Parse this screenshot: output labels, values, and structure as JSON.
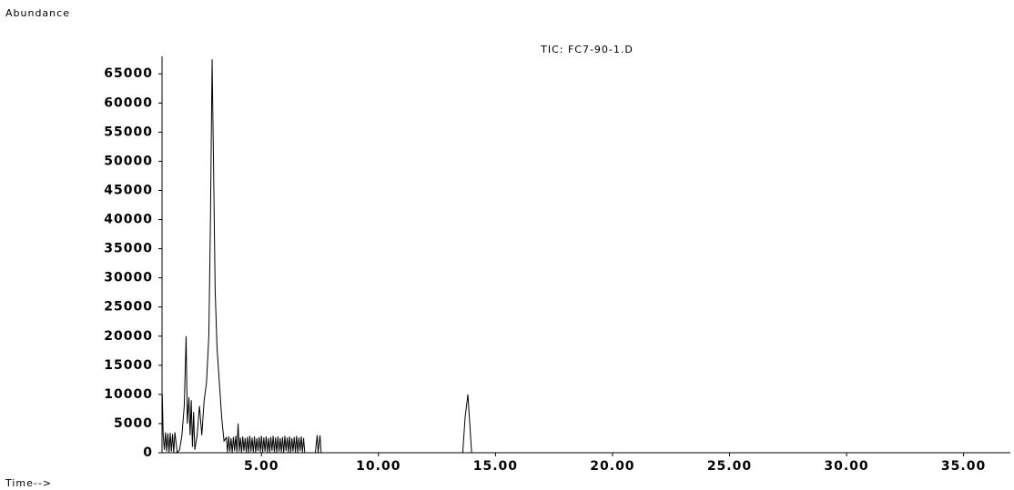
{
  "chart_data": {
    "type": "line",
    "title": "TIC: FC7-90-1.D",
    "y_label": "Abundance",
    "x_label": "Time-->",
    "series": [
      {
        "name": "TIC: FC7-90-1.D",
        "color": "#000000",
        "x": [
          0.76,
          0.8,
          0.85,
          0.9,
          0.95,
          1.0,
          1.05,
          1.1,
          1.15,
          1.2,
          1.25,
          1.3,
          1.4,
          1.5,
          1.6,
          1.7,
          1.78,
          1.83,
          1.9,
          1.95,
          2.0,
          2.05,
          2.1,
          2.15,
          2.25,
          2.35,
          2.45,
          2.55,
          2.65,
          2.75,
          2.82,
          2.89,
          2.95,
          3.02,
          3.1,
          3.2,
          3.3,
          3.4,
          3.5,
          3.55,
          3.6,
          3.65,
          3.7,
          3.75,
          3.8,
          3.85,
          3.9,
          3.95,
          4.0,
          4.05,
          4.1,
          4.15,
          4.2,
          4.25,
          4.3,
          4.35,
          4.4,
          4.45,
          4.5,
          4.55,
          4.6,
          4.65,
          4.7,
          4.75,
          4.8,
          4.85,
          4.9,
          4.95,
          5.0,
          5.05,
          5.1,
          5.15,
          5.2,
          5.25,
          5.3,
          5.35,
          5.4,
          5.45,
          5.5,
          5.55,
          5.6,
          5.65,
          5.7,
          5.75,
          5.8,
          5.85,
          5.9,
          5.95,
          6.0,
          6.05,
          6.1,
          6.15,
          6.2,
          6.25,
          6.3,
          6.35,
          6.4,
          6.45,
          6.5,
          6.55,
          6.6,
          6.65,
          6.7,
          6.75,
          6.8,
          6.85,
          6.9,
          7.3,
          7.38,
          7.42,
          7.5,
          7.55,
          13.6,
          13.7,
          13.82,
          13.9,
          13.98,
          37
        ],
        "values": [
          10000,
          3000,
          500,
          3500,
          200,
          3300,
          100,
          3400,
          200,
          3200,
          0,
          3500,
          0,
          500,
          3000,
          8000,
          20000,
          5000,
          9500,
          3000,
          9000,
          1000,
          7000,
          500,
          3000,
          8000,
          3000,
          9000,
          12000,
          20000,
          40000,
          67500,
          50000,
          28000,
          18000,
          12000,
          6000,
          2000,
          2600,
          100,
          2800,
          200,
          2500,
          0,
          2700,
          300,
          2900,
          100,
          5000,
          200,
          2600,
          0,
          2800,
          300,
          2500,
          100,
          2700,
          0,
          2900,
          200,
          2600,
          100,
          2800,
          0,
          2500,
          300,
          2700,
          100,
          2900,
          0,
          2600,
          200,
          2800,
          100,
          2500,
          0,
          2700,
          300,
          2900,
          100,
          2600,
          0,
          2800,
          200,
          2500,
          100,
          2700,
          0,
          2900,
          300,
          2600,
          100,
          2800,
          0,
          2500,
          200,
          2700,
          100,
          2900,
          0,
          2600,
          300,
          2800,
          100,
          2500,
          0,
          0,
          0,
          3000,
          0,
          3000,
          0,
          0,
          6000,
          10000,
          5000,
          0,
          0
        ]
      }
    ],
    "xlim": [
      0.75,
      37
    ],
    "xticks": [
      {
        "value": 5,
        "label": "5.00"
      },
      {
        "value": 10,
        "label": "10.00"
      },
      {
        "value": 15,
        "label": "15.00"
      },
      {
        "value": 20,
        "label": "20.00"
      },
      {
        "value": 25,
        "label": "25.00"
      },
      {
        "value": 30,
        "label": "30.00"
      },
      {
        "value": 35,
        "label": "35.00"
      }
    ],
    "ylim": [
      0,
      68000
    ],
    "yticks": [
      0,
      5000,
      10000,
      15000,
      20000,
      25000,
      30000,
      35000,
      40000,
      45000,
      50000,
      55000,
      60000,
      65000
    ],
    "grid": false
  }
}
